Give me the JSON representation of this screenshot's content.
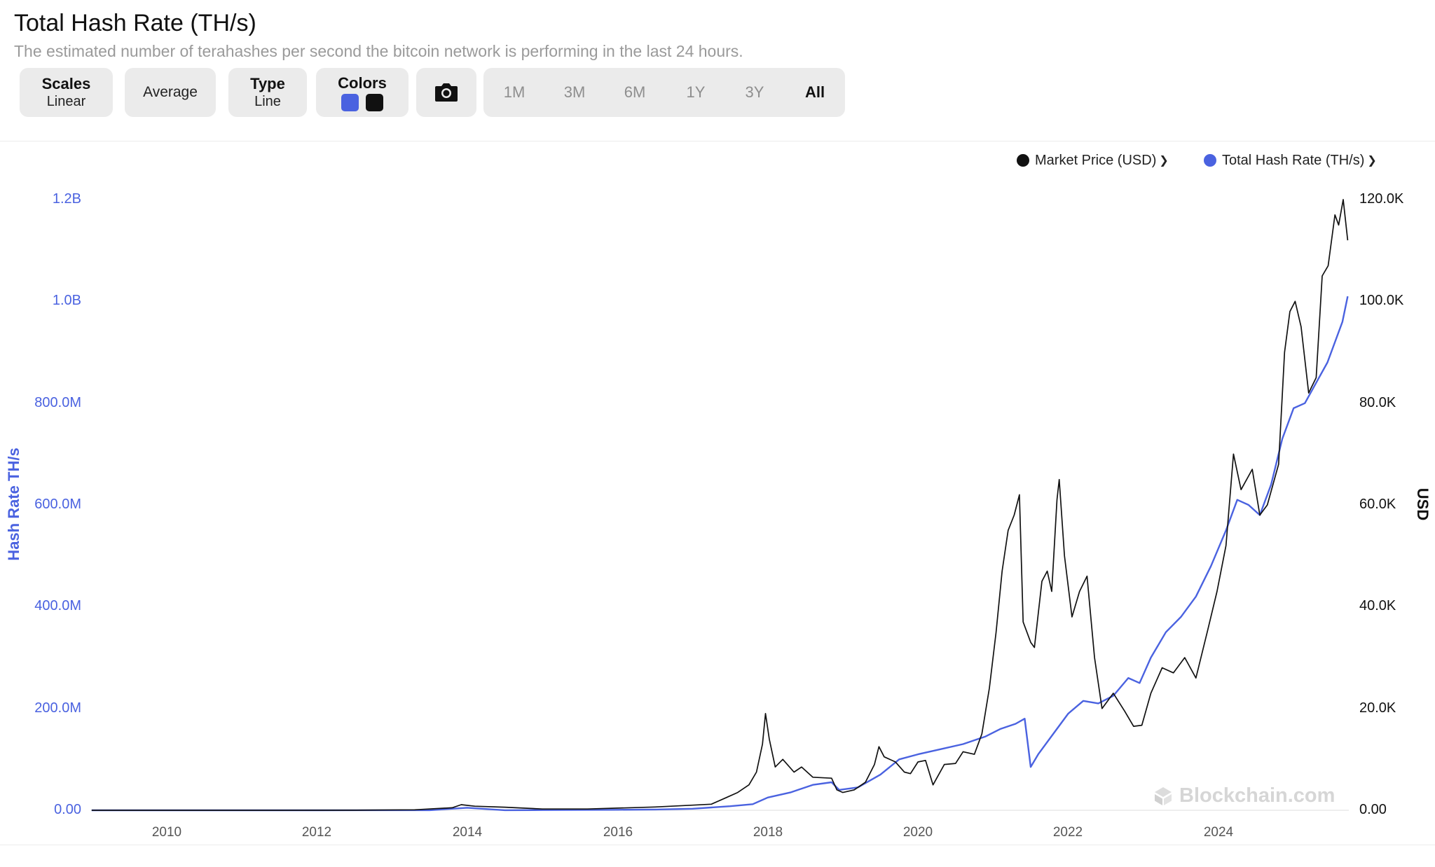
{
  "header": {
    "title": "Total Hash Rate (TH/s)",
    "subtitle": "The estimated number of terahashes per second the bitcoin network is performing in the last 24 hours."
  },
  "toolbar": {
    "scales_title": "Scales",
    "scales_value": "Linear",
    "average_label": "Average",
    "type_title": "Type",
    "type_value": "Line",
    "colors_title": "Colors",
    "camera_icon": "camera-icon",
    "ranges": [
      "1M",
      "3M",
      "6M",
      "1Y",
      "3Y",
      "All"
    ],
    "active_range": "All"
  },
  "colors": {
    "hash_rate": "#4a62e0",
    "market_price": "#111111"
  },
  "legend": {
    "market_price": "Market Price (USD)",
    "hash_rate": "Total Hash Rate (TH/s)"
  },
  "watermark": "Blockchain.com",
  "chart_data": {
    "type": "line",
    "title": "Total Hash Rate (TH/s)",
    "xlabel": "",
    "x_ticks": [
      "2010",
      "2012",
      "2014",
      "2016",
      "2018",
      "2020",
      "2022",
      "2024"
    ],
    "y_left": {
      "label": "Hash Rate TH/s",
      "ticks": [
        "0.00",
        "200.0M",
        "400.0M",
        "600.0M",
        "800.0M",
        "1.0B",
        "1.2B"
      ],
      "range": [
        0,
        1200000000
      ]
    },
    "y_right": {
      "label": "USD",
      "ticks": [
        "0.00",
        "20.0K",
        "40.0K",
        "60.0K",
        "80.0K",
        "100.0K",
        "120.0K"
      ],
      "range": [
        0,
        120000
      ]
    },
    "x_range": [
      2009.0,
      2025.0
    ],
    "grid": false,
    "legend_position": "top-right",
    "series": [
      {
        "name": "Market Price (USD)",
        "axis": "right",
        "color": "#111111",
        "points": [
          [
            2009.0,
            0
          ],
          [
            2010.5,
            0.1
          ],
          [
            2011.5,
            5
          ],
          [
            2012.5,
            10
          ],
          [
            2013.3,
            100
          ],
          [
            2013.8,
            500
          ],
          [
            2013.92,
            1100
          ],
          [
            2014.1,
            800
          ],
          [
            2014.5,
            600
          ],
          [
            2015.0,
            250
          ],
          [
            2015.6,
            250
          ],
          [
            2016.0,
            420
          ],
          [
            2016.5,
            650
          ],
          [
            2017.0,
            1000
          ],
          [
            2017.25,
            1200
          ],
          [
            2017.45,
            2500
          ],
          [
            2017.6,
            3500
          ],
          [
            2017.75,
            5000
          ],
          [
            2017.85,
            7500
          ],
          [
            2017.93,
            13000
          ],
          [
            2017.97,
            19000
          ],
          [
            2018.02,
            14000
          ],
          [
            2018.1,
            8500
          ],
          [
            2018.2,
            10000
          ],
          [
            2018.35,
            7500
          ],
          [
            2018.45,
            8500
          ],
          [
            2018.6,
            6500
          ],
          [
            2018.85,
            6300
          ],
          [
            2018.92,
            4000
          ],
          [
            2019.0,
            3500
          ],
          [
            2019.15,
            4000
          ],
          [
            2019.3,
            5500
          ],
          [
            2019.42,
            9000
          ],
          [
            2019.48,
            12500
          ],
          [
            2019.55,
            10500
          ],
          [
            2019.7,
            9500
          ],
          [
            2019.82,
            7500
          ],
          [
            2019.9,
            7200
          ],
          [
            2020.0,
            9500
          ],
          [
            2020.1,
            9800
          ],
          [
            2020.2,
            5000
          ],
          [
            2020.35,
            9000
          ],
          [
            2020.5,
            9200
          ],
          [
            2020.6,
            11500
          ],
          [
            2020.75,
            11000
          ],
          [
            2020.85,
            15000
          ],
          [
            2020.95,
            24000
          ],
          [
            2021.04,
            35000
          ],
          [
            2021.12,
            47000
          ],
          [
            2021.2,
            55000
          ],
          [
            2021.28,
            58000
          ],
          [
            2021.35,
            62000
          ],
          [
            2021.4,
            37000
          ],
          [
            2021.5,
            33000
          ],
          [
            2021.55,
            32000
          ],
          [
            2021.65,
            45000
          ],
          [
            2021.72,
            47000
          ],
          [
            2021.78,
            43000
          ],
          [
            2021.85,
            61000
          ],
          [
            2021.88,
            65000
          ],
          [
            2021.95,
            50000
          ],
          [
            2022.05,
            38000
          ],
          [
            2022.15,
            43000
          ],
          [
            2022.25,
            46000
          ],
          [
            2022.35,
            30000
          ],
          [
            2022.45,
            20000
          ],
          [
            2022.6,
            23000
          ],
          [
            2022.75,
            19500
          ],
          [
            2022.87,
            16500
          ],
          [
            2022.98,
            16700
          ],
          [
            2023.1,
            23000
          ],
          [
            2023.25,
            28000
          ],
          [
            2023.4,
            27000
          ],
          [
            2023.55,
            30000
          ],
          [
            2023.7,
            26000
          ],
          [
            2023.85,
            35000
          ],
          [
            2023.98,
            43000
          ],
          [
            2024.1,
            52000
          ],
          [
            2024.2,
            70000
          ],
          [
            2024.3,
            63000
          ],
          [
            2024.45,
            67000
          ],
          [
            2024.55,
            58000
          ],
          [
            2024.65,
            60000
          ],
          [
            2024.8,
            68000
          ],
          [
            2024.88,
            90000
          ],
          [
            2024.95,
            98000
          ],
          [
            2025.02,
            100000
          ],
          [
            2025.1,
            95000
          ],
          [
            2025.2,
            82000
          ],
          [
            2025.3,
            85000
          ],
          [
            2025.38,
            105000
          ],
          [
            2025.46,
            107000
          ],
          [
            2025.55,
            117000
          ],
          [
            2025.6,
            115000
          ],
          [
            2025.66,
            120000
          ],
          [
            2025.72,
            112000
          ]
        ]
      },
      {
        "name": "Total Hash Rate (TH/s)",
        "axis": "left",
        "color": "#4a62e0",
        "points": [
          [
            2009.0,
            0
          ],
          [
            2012.0,
            20
          ],
          [
            2013.5,
            200000
          ],
          [
            2014.0,
            5000000
          ],
          [
            2014.5,
            100000
          ],
          [
            2015.0,
            350000
          ],
          [
            2016.0,
            1000000
          ],
          [
            2016.5,
            1500000
          ],
          [
            2017.0,
            3000000
          ],
          [
            2017.5,
            8000000
          ],
          [
            2017.8,
            12000000
          ],
          [
            2018.0,
            25000000
          ],
          [
            2018.3,
            35000000
          ],
          [
            2018.6,
            50000000
          ],
          [
            2018.85,
            55000000
          ],
          [
            2018.95,
            40000000
          ],
          [
            2019.2,
            45000000
          ],
          [
            2019.5,
            70000000
          ],
          [
            2019.75,
            100000000
          ],
          [
            2020.0,
            110000000
          ],
          [
            2020.3,
            120000000
          ],
          [
            2020.6,
            130000000
          ],
          [
            2020.9,
            145000000
          ],
          [
            2021.1,
            160000000
          ],
          [
            2021.3,
            170000000
          ],
          [
            2021.42,
            180000000
          ],
          [
            2021.5,
            85000000
          ],
          [
            2021.6,
            110000000
          ],
          [
            2021.8,
            150000000
          ],
          [
            2022.0,
            190000000
          ],
          [
            2022.2,
            215000000
          ],
          [
            2022.4,
            210000000
          ],
          [
            2022.6,
            225000000
          ],
          [
            2022.8,
            260000000
          ],
          [
            2022.95,
            250000000
          ],
          [
            2023.1,
            300000000
          ],
          [
            2023.3,
            350000000
          ],
          [
            2023.5,
            380000000
          ],
          [
            2023.7,
            420000000
          ],
          [
            2023.9,
            480000000
          ],
          [
            2024.1,
            550000000
          ],
          [
            2024.25,
            610000000
          ],
          [
            2024.4,
            600000000
          ],
          [
            2024.55,
            580000000
          ],
          [
            2024.7,
            640000000
          ],
          [
            2024.85,
            730000000
          ],
          [
            2025.0,
            790000000
          ],
          [
            2025.15,
            800000000
          ],
          [
            2025.3,
            840000000
          ],
          [
            2025.45,
            880000000
          ],
          [
            2025.55,
            920000000
          ],
          [
            2025.65,
            960000000
          ],
          [
            2025.72,
            1010000000
          ]
        ]
      }
    ]
  }
}
